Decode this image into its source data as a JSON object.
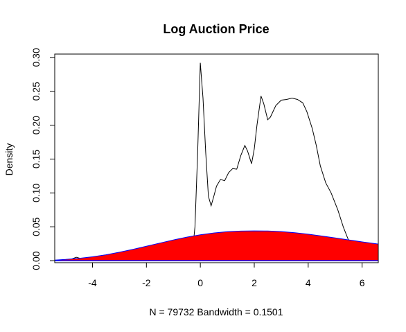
{
  "chart_data": {
    "type": "area",
    "title": "Log Auction Price",
    "xlabel": "N = 79732   Bandwidth = 0.1501",
    "ylabel": "Density",
    "xlim": [
      -5.4,
      6.6
    ],
    "ylim": [
      -0.003,
      0.305
    ],
    "x_ticks": [
      -4,
      -2,
      0,
      2,
      4,
      6
    ],
    "y_ticks": [
      0.0,
      0.05,
      0.1,
      0.15,
      0.2,
      0.25,
      0.3
    ],
    "y_tick_labels": [
      "0.00",
      "0.05",
      "0.10",
      "0.15",
      "0.20",
      "0.25",
      "0.30"
    ],
    "grid": false,
    "colors": {
      "fill": "#ff0000",
      "fill_border": "#0000ff",
      "line": "#000000",
      "baseline": "#0000ff"
    },
    "series": [
      {
        "kind": "line",
        "points": [
          [
            -5.4,
            0.0005
          ],
          [
            -5.0,
            0.001
          ],
          [
            -4.8,
            0.002
          ],
          [
            -4.6,
            0.005
          ],
          [
            -4.5,
            0.004
          ],
          [
            -4.3,
            0.001
          ],
          [
            -3.0,
            0.0002
          ],
          [
            -1.0,
            0.0005
          ],
          [
            -0.5,
            0.002
          ],
          [
            -0.3,
            0.01
          ],
          [
            -0.2,
            0.05
          ],
          [
            -0.1,
            0.16
          ],
          [
            0.0,
            0.292
          ],
          [
            0.1,
            0.24
          ],
          [
            0.2,
            0.16
          ],
          [
            0.3,
            0.095
          ],
          [
            0.4,
            0.081
          ],
          [
            0.5,
            0.095
          ],
          [
            0.6,
            0.11
          ],
          [
            0.75,
            0.12
          ],
          [
            0.9,
            0.118
          ],
          [
            1.05,
            0.13
          ],
          [
            1.2,
            0.136
          ],
          [
            1.35,
            0.135
          ],
          [
            1.5,
            0.155
          ],
          [
            1.65,
            0.17
          ],
          [
            1.75,
            0.162
          ],
          [
            1.9,
            0.143
          ],
          [
            2.0,
            0.165
          ],
          [
            2.1,
            0.2
          ],
          [
            2.25,
            0.243
          ],
          [
            2.35,
            0.232
          ],
          [
            2.5,
            0.208
          ],
          [
            2.6,
            0.212
          ],
          [
            2.8,
            0.229
          ],
          [
            3.0,
            0.237
          ],
          [
            3.2,
            0.238
          ],
          [
            3.4,
            0.24
          ],
          [
            3.6,
            0.238
          ],
          [
            3.8,
            0.233
          ],
          [
            3.95,
            0.22
          ],
          [
            4.15,
            0.195
          ],
          [
            4.3,
            0.17
          ],
          [
            4.45,
            0.14
          ],
          [
            4.65,
            0.115
          ],
          [
            4.85,
            0.1
          ],
          [
            5.1,
            0.075
          ],
          [
            5.3,
            0.05
          ],
          [
            5.45,
            0.035
          ],
          [
            5.6,
            0.02
          ],
          [
            5.8,
            0.008
          ],
          [
            6.1,
            0.002
          ],
          [
            6.6,
            0.0
          ]
        ]
      },
      {
        "kind": "filled",
        "points": [
          [
            -5.4,
            0.0009
          ],
          [
            -5.0,
            0.0018
          ],
          [
            -4.5,
            0.0034
          ],
          [
            -4.0,
            0.0057
          ],
          [
            -3.5,
            0.0087
          ],
          [
            -3.0,
            0.0124
          ],
          [
            -2.5,
            0.0167
          ],
          [
            -2.0,
            0.0213
          ],
          [
            -1.5,
            0.026
          ],
          [
            -1.0,
            0.0306
          ],
          [
            -0.5,
            0.0348
          ],
          [
            0.0,
            0.0382
          ],
          [
            0.5,
            0.0409
          ],
          [
            1.0,
            0.0427
          ],
          [
            1.5,
            0.0437
          ],
          [
            2.0,
            0.044
          ],
          [
            2.5,
            0.0438
          ],
          [
            3.0,
            0.0429
          ],
          [
            3.5,
            0.0413
          ],
          [
            4.0,
            0.0391
          ],
          [
            4.5,
            0.0364
          ],
          [
            5.0,
            0.0335
          ],
          [
            5.5,
            0.0307
          ],
          [
            6.0,
            0.0277
          ],
          [
            6.6,
            0.0245
          ]
        ]
      }
    ]
  }
}
